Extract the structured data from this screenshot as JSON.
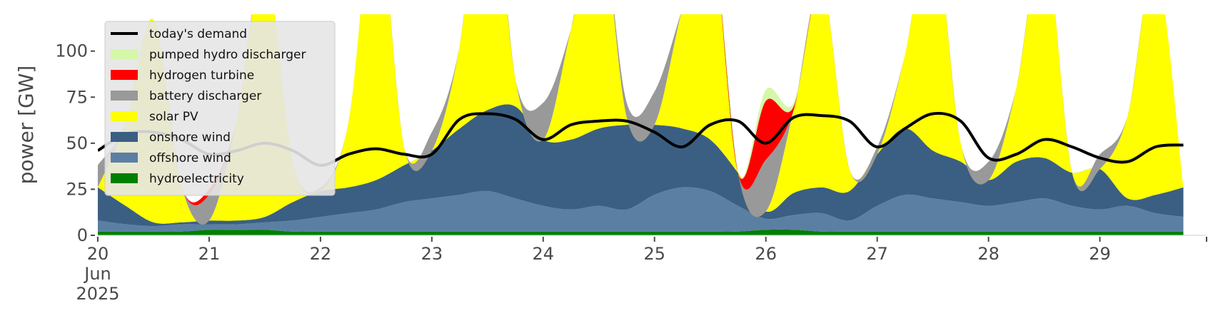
{
  "chart_data": {
    "type": "area",
    "title": "",
    "xlabel": "",
    "ylabel": "power [GW]",
    "ylim": [
      0,
      120
    ],
    "xlim": [
      "2025-06-20T00:00",
      "2025-06-29T23:00"
    ],
    "yticks": [
      0,
      25,
      50,
      75,
      100
    ],
    "xticks": [
      {
        "date": "2025-06-20",
        "label": "20",
        "sublabel": "Jun",
        "sublabel2": "2025"
      },
      {
        "date": "2025-06-21",
        "label": "21"
      },
      {
        "date": "2025-06-22",
        "label": "22"
      },
      {
        "date": "2025-06-23",
        "label": "23"
      },
      {
        "date": "2025-06-24",
        "label": "24"
      },
      {
        "date": "2025-06-25",
        "label": "25"
      },
      {
        "date": "2025-06-26",
        "label": "26"
      },
      {
        "date": "2025-06-27",
        "label": "27"
      },
      {
        "date": "2025-06-28",
        "label": "28"
      },
      {
        "date": "2025-06-29",
        "label": "29"
      }
    ],
    "grid": false,
    "legend_position": "top-left",
    "x_start": "2025-06-20T00:00",
    "x_step_hours": 6,
    "stacked_series": [
      {
        "name": "hydroelectricity",
        "color": "#008000",
        "values": [
          2,
          2,
          2,
          2,
          3,
          3,
          3,
          2,
          2,
          2,
          2,
          2,
          2,
          2,
          2,
          2,
          2,
          2,
          2,
          2,
          2,
          2,
          2,
          2,
          3,
          3,
          2,
          2,
          2,
          2,
          2,
          2,
          2,
          2,
          2,
          2,
          2,
          2,
          2,
          2
        ]
      },
      {
        "name": "offshore wind",
        "color": "#5b7fa3",
        "values": [
          6,
          4,
          3,
          4,
          3,
          3,
          4,
          6,
          8,
          10,
          12,
          16,
          18,
          20,
          22,
          18,
          14,
          12,
          14,
          12,
          20,
          24,
          22,
          14,
          6,
          8,
          10,
          6,
          14,
          20,
          18,
          16,
          14,
          16,
          18,
          14,
          12,
          14,
          10,
          8
        ]
      },
      {
        "name": "onshore wind",
        "color": "#3b5f82",
        "values": [
          18,
          10,
          2,
          1,
          2,
          2,
          3,
          10,
          14,
          14,
          16,
          20,
          26,
          36,
          44,
          50,
          36,
          38,
          42,
          46,
          38,
          32,
          28,
          18,
          4,
          12,
          14,
          16,
          28,
          36,
          26,
          22,
          14,
          22,
          22,
          18,
          22,
          4,
          10,
          16
        ]
      },
      {
        "name": "solar PV",
        "color": "#ffff00",
        "values": [
          0,
          45,
          110,
          20,
          0,
          55,
          140,
          22,
          0,
          35,
          150,
          10,
          0,
          45,
          150,
          15,
          0,
          60,
          120,
          4,
          0,
          65,
          120,
          0,
          0,
          45,
          110,
          12,
          0,
          40,
          125,
          10,
          0,
          40,
          120,
          0,
          0,
          45,
          125,
          0
        ]
      },
      {
        "name": "battery discharger",
        "color": "#999999",
        "values": [
          12,
          0,
          0,
          0,
          14,
          0,
          0,
          0,
          2,
          0,
          0,
          0,
          10,
          0,
          0,
          0,
          20,
          0,
          0,
          8,
          18,
          0,
          0,
          0,
          28,
          0,
          0,
          0,
          4,
          0,
          0,
          0,
          10,
          0,
          0,
          0,
          8,
          0,
          0,
          0
        ]
      },
      {
        "name": "hydrogen turbine",
        "color": "#ff0000",
        "values": [
          0,
          0,
          0,
          0,
          3,
          0,
          0,
          0,
          0,
          0,
          0,
          0,
          0,
          0,
          0,
          0,
          0,
          0,
          0,
          0,
          0,
          0,
          0,
          0,
          32,
          2,
          0,
          0,
          0,
          0,
          0,
          0,
          0,
          0,
          0,
          0,
          0,
          0,
          0,
          0
        ]
      },
      {
        "name": "pumped hydro discharger",
        "color": "#d4f7a8",
        "values": [
          0,
          0,
          0,
          0,
          0,
          0,
          0,
          0,
          0,
          0,
          0,
          0,
          0,
          0,
          0,
          0,
          0,
          0,
          0,
          0,
          0,
          0,
          0,
          0,
          6,
          2,
          0,
          0,
          0,
          0,
          0,
          0,
          0,
          0,
          0,
          0,
          0,
          0,
          0,
          0
        ]
      }
    ],
    "demand": {
      "name": "today's demand",
      "color": "#000000",
      "values": [
        46,
        55,
        56,
        52,
        44,
        46,
        50,
        46,
        38,
        44,
        47,
        44,
        44,
        63,
        66,
        63,
        52,
        60,
        62,
        62,
        56,
        48,
        60,
        62,
        50,
        64,
        65,
        62,
        48,
        58,
        66,
        62,
        42,
        44,
        52,
        48,
        42,
        40,
        48,
        49
      ]
    }
  }
}
